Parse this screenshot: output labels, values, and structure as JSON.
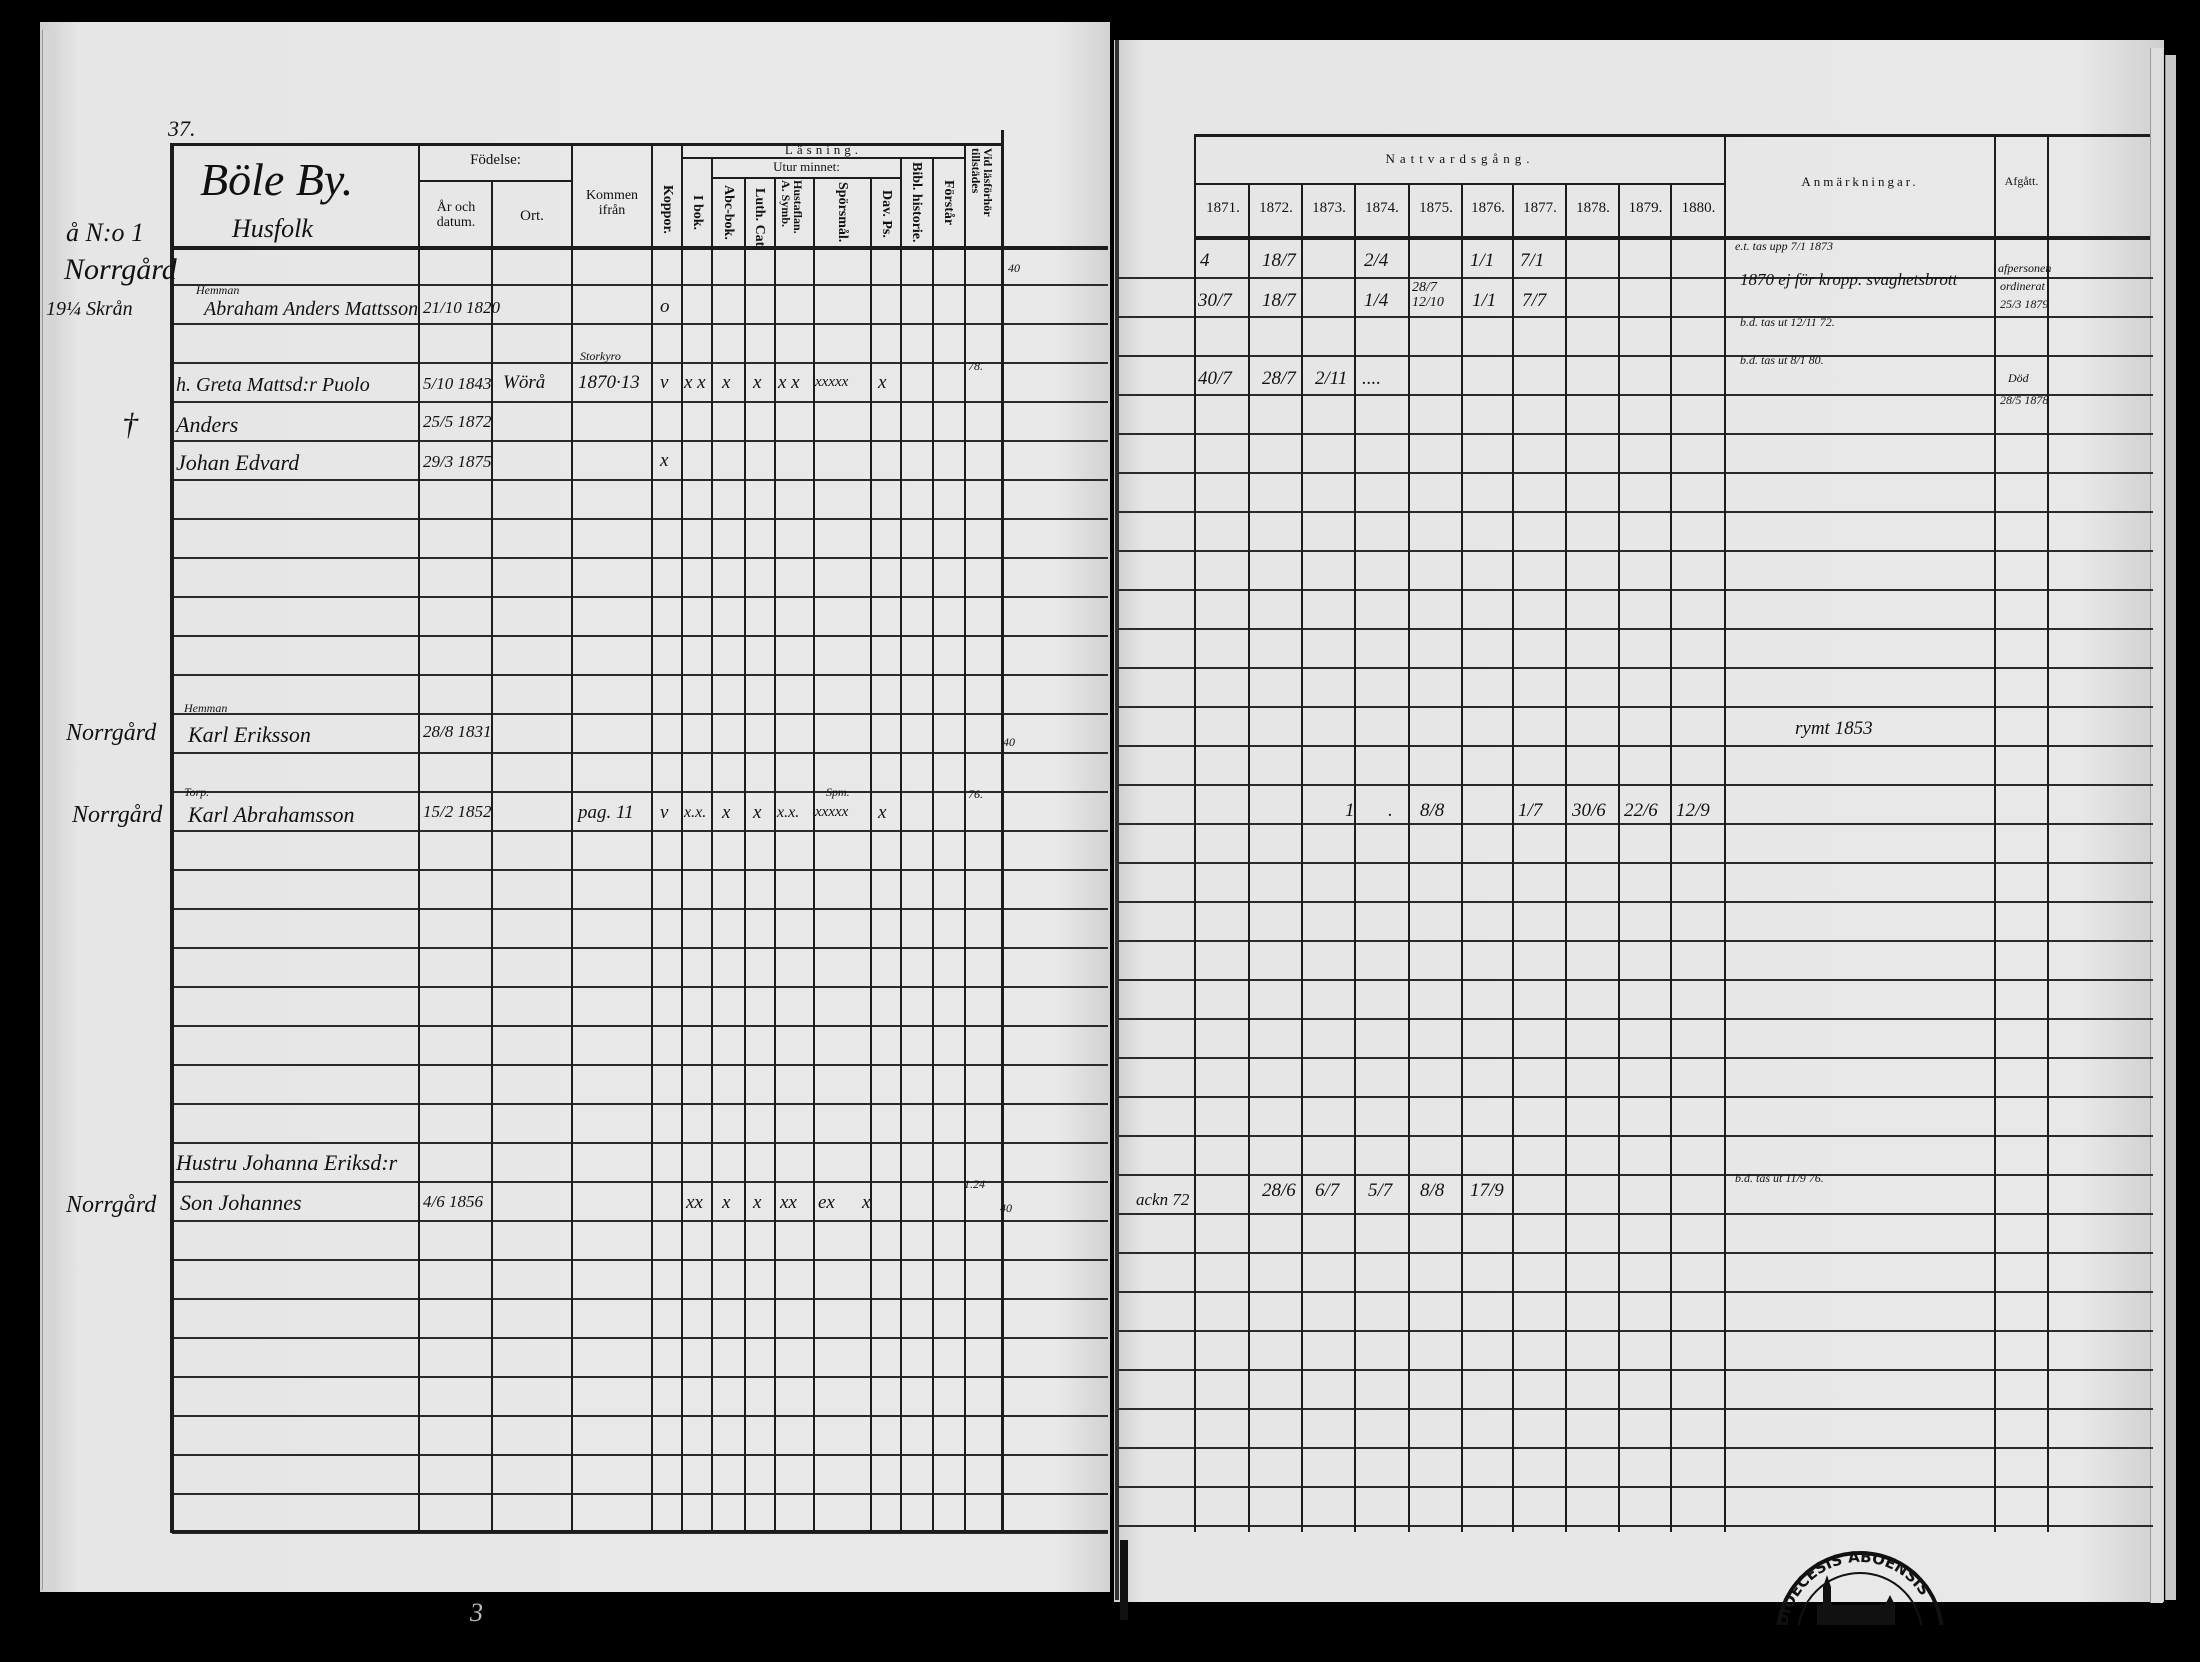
{
  "left_page": {
    "page_number": "37.",
    "village_title": "Böle By.",
    "village_subtitle": "Husfolk",
    "header": {
      "fodelse": "Födelse:",
      "ar_och_datum": "År och datum.",
      "ort": "Ort.",
      "kommen_ifran": "Kommen ifrån",
      "koppor": "Koppor.",
      "lasning": "Läsning.",
      "i_bok": "I bok.",
      "utur_minnet": "Utur minnet:",
      "abc_bok": "Abc-bok.",
      "luth_cat": "Luth. Cat.",
      "hustaflan": "Hustaflan. A. Symb.",
      "sporsmal": "Spörsmål.",
      "dav_ps": "Dav. Ps.",
      "bibl_historie": "Bibl. historie.",
      "forstar": "Förstår",
      "vid_lasforhor": "Vid läsförhör tillstädes"
    },
    "household_no": "å N:o 1",
    "farm": "Norrgård",
    "homestead_share": "19¼ Skrån",
    "top_margin_number": "40",
    "entries": [
      {
        "title": "Hemman",
        "name": "Abraham Anders Mattsson",
        "date": "21/10 1820",
        "koppor": "o"
      },
      {
        "name": "h. Greta Mattsd:r Puolo",
        "date": "5/10 1843",
        "ort": "Wörå",
        "kommen": "Storkyro",
        "kommen_ref": "1870·13",
        "koppor": "v",
        "marks": {
          "i_bok": "x x",
          "abc": "x",
          "luth": "x",
          "hust": "x x",
          "sporsmal": "xxxxx",
          "dav": "x"
        },
        "lasforhor": "78."
      },
      {
        "mark": "†",
        "name": "Anders",
        "date": "25/5 1872"
      },
      {
        "name": "Johan Edvard",
        "date": "29/3 1875",
        "koppor": "x"
      },
      {
        "farm": "Norrgård",
        "title": "Hemman",
        "name": "Karl Eriksson",
        "date": "28/8 1831",
        "lasforhor": "40"
      },
      {
        "farm": "Norrgård",
        "title": "Torp.",
        "name": "Karl Abrahamsson",
        "date": "15/2 1852",
        "kommen": "pag. 11",
        "koppor": "v",
        "marks": {
          "i_bok": "x.x.",
          "abc": "x",
          "luth": "x",
          "hust": "x.x.",
          "sporsmal_note": "Spm.",
          "sporsmal": "xxxxx",
          "dav": "x"
        },
        "lasforhor": "76."
      },
      {
        "name": "Hustru Johanna Eriksd:r",
        "lasforhor": "1.24"
      },
      {
        "farm": "Norrgård",
        "name": "Son Johannes",
        "date": "4/6 1856",
        "marks": {
          "i_bok": "xx",
          "abc": "x",
          "luth": "x",
          "hust": "xx",
          "sporsmal": "ex",
          "dav": "x"
        },
        "lasforhor": "40"
      }
    ],
    "footer_mark": "3"
  },
  "right_page": {
    "header": {
      "nattvardsgang": "Nattvardsgång.",
      "years": [
        "1871.",
        "1872.",
        "1873.",
        "1874.",
        "1875.",
        "1876.",
        "1877.",
        "1878.",
        "1879.",
        "1880."
      ],
      "anmarkningar": "Anmärkningar.",
      "afgatt": "Afgått."
    },
    "rows": {
      "r1": {
        "y1871": "4",
        "y1872": "18/7",
        "y1874": "2/4",
        "y1876": "1/1",
        "y1877": "7/1",
        "note": "e.t. tas upp 7/1 1873"
      },
      "r2": {
        "y1871": "30/7",
        "y1872": "18/7",
        "y1874": "1/4",
        "y1875": "28/7 12/10",
        "y1876": "1/1",
        "y1877": "7/7",
        "note": "1870 ej för kropp. svaghetsbrott",
        "afgatt": [
          "afpersonen",
          "ordinerat",
          "25/3 1879"
        ]
      },
      "r3": {
        "note": "b.d. tas ut 12/11 72."
      },
      "r4": {
        "note": "b.d. tas ut 8/1 80."
      },
      "r5": {
        "y1871": "40/7",
        "y1872": "28/7",
        "y1873": "2/11",
        "y1874": "....",
        "afgatt": [
          "Död",
          "28/5 1878"
        ]
      },
      "r6": {
        "note": "rymt 1853"
      },
      "r7": {
        "y1873": "1",
        "y1874": ".",
        "y1875": "8/8",
        "y1877": "1/7",
        "y1878": "30/6",
        "y1879": "22/6",
        "y1880": "12/9"
      },
      "r8": {
        "pre": "ackn 72",
        "y1872": "28/6",
        "y1873": "6/7",
        "y1874": "5/7",
        "y1875": "8/8",
        "y1876": "17/9",
        "note": "b.d. tas ut 11/9 76."
      }
    }
  },
  "stamp": {
    "text": "DIOECESIS ABOENSIS"
  },
  "colors": {
    "paper": "#e4e4e4",
    "ink": "#111111",
    "background": "#000000"
  }
}
